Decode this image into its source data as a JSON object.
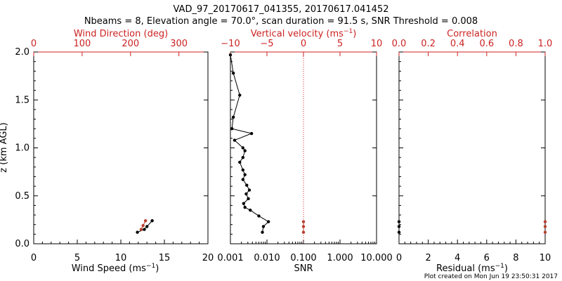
{
  "title_line1": "VAD_97_20170617_041355, 20170617.041452",
  "title_line2": "Nbeams = 8, Elevation angle = 70.0°, scan duration = 91.5 s, SNR Threshold = 0.008",
  "footer": "Plot created on Mon Jun 19 23:50:31 2017",
  "colors": {
    "axis": "#000000",
    "red": "#cc2222",
    "red_marker": "#b84030"
  },
  "chart_data": [
    {
      "panel": "wind",
      "type": "line",
      "ylabel": "z (km AGL)",
      "xlabel": "Wind Speed (ms",
      "xlabel_sup": "−1",
      "xlabel_close": ")",
      "xlim": [
        0,
        20
      ],
      "ylim": [
        0.0,
        2.0
      ],
      "xticks": [
        "0",
        "5",
        "10",
        "15",
        "20"
      ],
      "yticks": [
        "0.0",
        "0.5",
        "1.0",
        "1.5",
        "2.0"
      ],
      "top_label": "Wind Direction (deg)",
      "top_xlim": [
        0,
        360
      ],
      "top_ticks": [
        "0",
        "100",
        "200",
        "300"
      ],
      "series": [
        {
          "name": "Wind Speed",
          "axis": "bottom",
          "color": "#000000",
          "x": [
            11.9,
            12.7,
            13.0,
            13.6
          ],
          "z": [
            0.12,
            0.15,
            0.18,
            0.24
          ]
        },
        {
          "name": "Wind Direction",
          "axis": "top",
          "color": "#b84030",
          "x": [
            222,
            226,
            231
          ],
          "z": [
            0.15,
            0.19,
            0.24
          ]
        }
      ]
    },
    {
      "panel": "snr",
      "type": "line",
      "xlabel": "SNR",
      "xscale": "log",
      "xlim": [
        0.001,
        10
      ],
      "ylim": [
        0.0,
        2.0
      ],
      "xticks": [
        "0.001",
        "0.010",
        "0.100",
        "1.000",
        "10.000"
      ],
      "top_label": "Vertical velocity (ms",
      "top_label_sup": "−1",
      "top_label_close": ")",
      "top_xlim": [
        -10,
        10
      ],
      "top_ticks": [
        "−10",
        "−5",
        "0",
        "5",
        "10"
      ],
      "series": [
        {
          "name": "SNR",
          "axis": "bottom",
          "color": "#000000",
          "x": [
            0.001,
            0.0012,
            0.0018,
            0.0012,
            0.0011,
            0.0038,
            0.0013,
            0.0022,
            0.0025,
            0.0022,
            0.0018,
            0.0022,
            0.0025,
            0.0022,
            0.0028,
            0.0033,
            0.0027,
            0.0031,
            0.0023,
            0.0025,
            0.0035,
            0.006,
            0.011,
            0.008,
            0.0075
          ],
          "z": [
            1.97,
            1.78,
            1.55,
            1.32,
            1.2,
            1.15,
            1.08,
            1.0,
            0.97,
            0.9,
            0.85,
            0.77,
            0.72,
            0.67,
            0.61,
            0.56,
            0.52,
            0.47,
            0.42,
            0.38,
            0.35,
            0.29,
            0.23,
            0.18,
            0.12
          ]
        },
        {
          "name": "Vertical velocity",
          "axis": "top",
          "color": "#b84030",
          "x": [
            0,
            0,
            0
          ],
          "z": [
            0.12,
            0.18,
            0.23
          ]
        }
      ]
    },
    {
      "panel": "residual",
      "type": "scatter",
      "xlabel": "Residual (ms",
      "xlabel_sup": "−1",
      "xlabel_close": ")",
      "xlim": [
        0,
        10
      ],
      "ylim": [
        0.0,
        2.0
      ],
      "xticks": [
        "0",
        "2",
        "4",
        "6",
        "8",
        "10"
      ],
      "top_label": "Correlation",
      "top_xlim": [
        0,
        1
      ],
      "top_ticks": [
        "0.0",
        "0.2",
        "0.4",
        "0.6",
        "0.8",
        "1.0"
      ],
      "series": [
        {
          "name": "Residual",
          "axis": "bottom",
          "color": "#000000",
          "x": [
            0,
            0,
            0
          ],
          "z": [
            0.12,
            0.18,
            0.23
          ]
        },
        {
          "name": "Correlation",
          "axis": "top",
          "color": "#b84030",
          "x": [
            1.0,
            1.0,
            1.0
          ],
          "z": [
            0.12,
            0.18,
            0.23
          ]
        }
      ]
    }
  ]
}
